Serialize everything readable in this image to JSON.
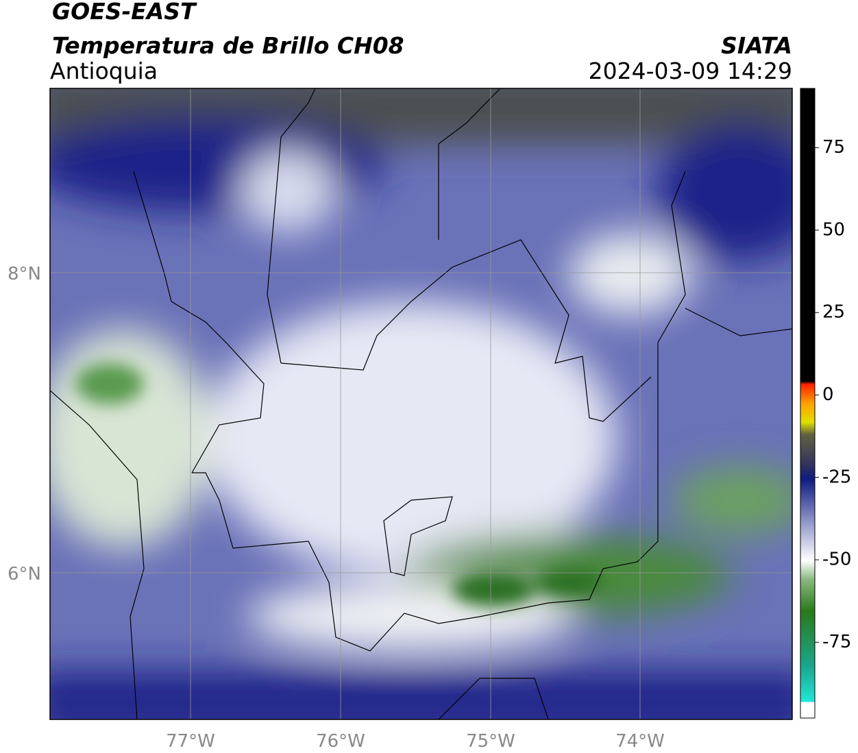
{
  "header": {
    "title": "GOES-EAST",
    "subtitle": "Temperatura de Brillo CH08",
    "region": "Antioquia",
    "source": "SIATA",
    "datetime": "2024-03-09 14:29"
  },
  "map": {
    "lat_labels": [
      "8°N",
      "6°N"
    ],
    "lon_labels": [
      "77°W",
      "76°W",
      "75°W",
      "74°W"
    ]
  },
  "colorbar": {
    "lim": [
      -98,
      93
    ],
    "ticks": [
      75,
      50,
      25,
      0,
      -25,
      -50,
      -75
    ]
  }
}
